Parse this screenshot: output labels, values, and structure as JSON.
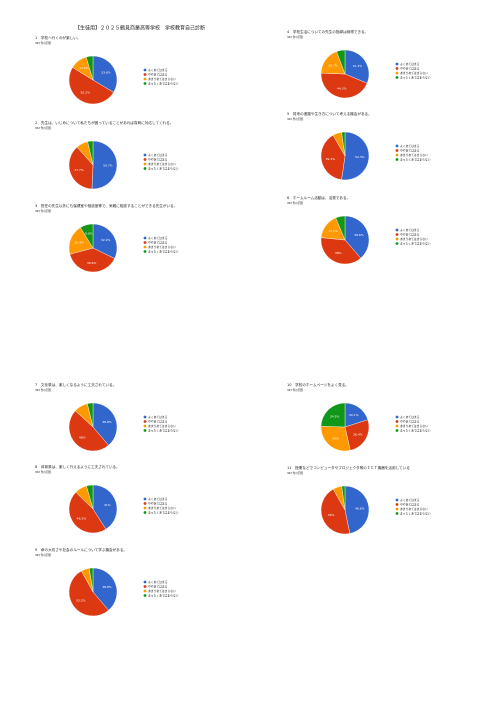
{
  "page_title": "【生徒用】２０２５鶴見商業高等学校　学校教育自己診断",
  "chart_data": [
    {
      "type": "pie",
      "title": "1　学校へ行くのが楽しい。",
      "subtitle": "363 件の回答",
      "categories": [
        "よくあてはまる",
        "ややあてはまる",
        "あまりあてはまらない",
        "まったくあてはまらない"
      ],
      "colors": [
        "#3366cc",
        "#dc3912",
        "#ff9900",
        "#109618"
      ],
      "values": [
        33.6,
        50.2,
        11.6,
        4.6
      ],
      "value_labels": [
        "33.6%",
        "50.2%",
        "11.6%",
        null
      ]
    },
    {
      "type": "pie",
      "title": "2　先生は、いじめについて私たちが困っていることがあれば真剣に対応してくれる。",
      "subtitle": "363 件の回答",
      "categories": [
        "よくあてはまる",
        "ややあてはまる",
        "あまりあてはまらない",
        "まったくあてはまらない"
      ],
      "colors": [
        "#3366cc",
        "#dc3912",
        "#ff9900",
        "#109618"
      ],
      "values": [
        50.7,
        37.7,
        8.0,
        3.6
      ],
      "value_labels": [
        "50.7%",
        "37.7%",
        null,
        null
      ]
    },
    {
      "type": "pie",
      "title": "3　担任の先生以外にも保健室や相談室等で、気軽に相談することができる先生がいる。",
      "subtitle": "363 件の回答",
      "categories": [
        "よくあてはまる",
        "ややあてはまる",
        "あまりあてはまらない",
        "まったくあてはまらない"
      ],
      "colors": [
        "#3366cc",
        "#dc3912",
        "#ff9900",
        "#109618"
      ],
      "values": [
        32.2,
        38.6,
        20.4,
        8.8
      ],
      "value_labels": [
        "32.2%",
        "38.6%",
        "20.4%",
        "8.8%"
      ]
    },
    {
      "type": "pie",
      "title": "4　学校生活についての先生の指導は納得できる。",
      "subtitle": "363 件の回答",
      "categories": [
        "よくあてはまる",
        "ややあてはまる",
        "あまりあてはまらない",
        "まったくあてはまらない"
      ],
      "colors": [
        "#3366cc",
        "#dc3912",
        "#ff9900",
        "#109618"
      ],
      "values": [
        31.3,
        44.3,
        18.7,
        5.7
      ],
      "value_labels": [
        "31.3%",
        "44.3%",
        "18.7%",
        null
      ]
    },
    {
      "type": "pie",
      "title": "5　将来の進路や生き方について考える機会がある。",
      "subtitle": "363 件の回答",
      "categories": [
        "よくあてはまる",
        "ややあてはまる",
        "あまりあてはまらない",
        "まったくあてはまらない"
      ],
      "colors": [
        "#3366cc",
        "#dc3912",
        "#ff9900",
        "#109618"
      ],
      "values": [
        52.3,
        39.4,
        6.0,
        2.3
      ],
      "value_labels": [
        "52.3%",
        "39.4%",
        null,
        null
      ]
    },
    {
      "type": "pie",
      "title": "6　ホームルーム活動は、活発である。",
      "subtitle": "363 件の回答",
      "categories": [
        "よくあてはまる",
        "ややあてはまる",
        "あまりあてはまらない",
        "まったくあてはまらない"
      ],
      "colors": [
        "#3366cc",
        "#dc3912",
        "#ff9900",
        "#109618"
      ],
      "values": [
        38.6,
        38.0,
        17.1,
        6.3
      ],
      "value_labels": [
        "38.6%",
        "38%",
        "17.1%",
        null
      ]
    },
    {
      "type": "pie",
      "title": "7　文化祭は、楽しくなるように工夫されている。",
      "subtitle": "363 件の回答",
      "categories": [
        "よくあてはまる",
        "ややあてはまる",
        "あまりあてはまらない",
        "まったくあてはまらない"
      ],
      "colors": [
        "#3366cc",
        "#dc3912",
        "#ff9900",
        "#109618"
      ],
      "values": [
        38.8,
        48.0,
        9.4,
        3.8
      ],
      "value_labels": [
        "38.8%",
        "48%",
        null,
        null
      ]
    },
    {
      "type": "pie",
      "title": "8　体育祭は、楽しく行えるように工夫されている。",
      "subtitle": "363 件の回答",
      "categories": [
        "よくあてはまる",
        "ややあてはまる",
        "あまりあてはまらない",
        "まったくあてはまらない"
      ],
      "colors": [
        "#3366cc",
        "#dc3912",
        "#ff9900",
        "#109618"
      ],
      "values": [
        41.0,
        46.3,
        8.3,
        4.4
      ],
      "value_labels": [
        "41%",
        "46.3%",
        null,
        null
      ]
    },
    {
      "type": "pie",
      "title": "9　命の大切さや社会のルールについて学ぶ機会がある。",
      "subtitle": "363 件の回答",
      "categories": [
        "よくあてはまる",
        "ややあてはまる",
        "あまりあてはまらない",
        "まったくあてはまらない"
      ],
      "colors": [
        "#3366cc",
        "#dc3912",
        "#ff9900",
        "#109618"
      ],
      "values": [
        38.8,
        53.2,
        5.5,
        2.5
      ],
      "value_labels": [
        "38.8%",
        "53.2%",
        null,
        null
      ]
    },
    {
      "type": "pie",
      "title": "10　学校のホームページをよく見る。",
      "subtitle": "363 件の回答",
      "categories": [
        "よくあてはまる",
        "ややあてはまる",
        "あまりあてはまらない",
        "まったくあてはまらない"
      ],
      "colors": [
        "#3366cc",
        "#dc3912",
        "#ff9900",
        "#109618"
      ],
      "values": [
        20.1,
        26.4,
        29.0,
        24.5
      ],
      "value_labels": [
        "20.1%",
        "26.4%",
        "29%",
        "24.5%"
      ]
    },
    {
      "type": "pie",
      "title": "11　授業などでコンピュータやプロジェクタ等のＩＣＴ機器を活用している",
      "subtitle": "363 件の回答",
      "categories": [
        "よくあてはまる",
        "ややあてはまる",
        "あまりあてはまらない",
        "まったくあてはまらない"
      ],
      "colors": [
        "#3366cc",
        "#dc3912",
        "#ff9900",
        "#109618"
      ],
      "values": [
        46.8,
        45.0,
        6.0,
        2.2
      ],
      "value_labels": [
        "46.8%",
        "45%",
        null,
        null
      ]
    }
  ]
}
